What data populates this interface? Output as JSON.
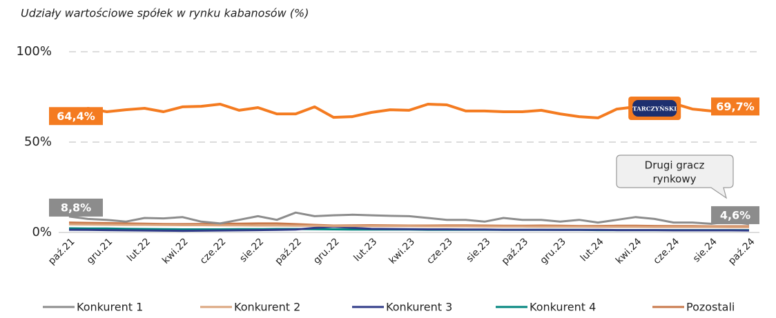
{
  "chart_data": {
    "type": "line",
    "title": "Udziały wartościowe spółek w rynku kabanosów (%)",
    "categories": [
      "paź.21",
      null,
      "gru.21",
      null,
      "lut.22",
      null,
      "kwi.22",
      null,
      "cze.22",
      null,
      "sie.22",
      null,
      "paź.22",
      null,
      "gru.22",
      null,
      "lut.23",
      null,
      "kwi.23",
      null,
      "cze.23",
      null,
      "sie.23",
      null,
      "paź.23",
      null,
      "gru.23",
      null,
      "lut.24",
      null,
      "kwi.24",
      null,
      "cze.24",
      null,
      "sie.24",
      null,
      "paź.24"
    ],
    "series": [
      {
        "name": "TARCZYŃSKI",
        "color": "#f47b20",
        "values": [
          64.4,
          68.7,
          66.8,
          67.9,
          68.7,
          66.8,
          69.5,
          69.8,
          71.0,
          67.6,
          69.1,
          65.6,
          65.6,
          69.5,
          63.7,
          64.1,
          66.4,
          67.9,
          67.6,
          71.0,
          70.6,
          67.2,
          67.2,
          66.8,
          66.8,
          67.6,
          65.6,
          64.1,
          63.4,
          68.3,
          69.5,
          69.5,
          71.4,
          68.3,
          67.2,
          68.0,
          69.7
        ],
        "value_labels": [
          "64,4%",
          null,
          null,
          null,
          null,
          null,
          null,
          null,
          null,
          null,
          null,
          null,
          null,
          null,
          null,
          null,
          null,
          null,
          null,
          null,
          null,
          null,
          null,
          null,
          null,
          null,
          null,
          null,
          null,
          null,
          null,
          null,
          null,
          null,
          null,
          null,
          "69,7%"
        ]
      },
      {
        "name": "Konkurent 1",
        "color": "#8c8c8c",
        "values": [
          8.8,
          7.5,
          7,
          6,
          8,
          7.8,
          8.5,
          6,
          5,
          7,
          9,
          7,
          11,
          9,
          9.5,
          9.8,
          9.5,
          9.2,
          9,
          8,
          7,
          7,
          6,
          8,
          7,
          7,
          6,
          7,
          5.5,
          7,
          8.5,
          7.5,
          5.5,
          5.5,
          4.8,
          6,
          4.6
        ],
        "value_labels": [
          "8,8%",
          null,
          null,
          null,
          null,
          null,
          null,
          null,
          null,
          null,
          null,
          null,
          null,
          null,
          null,
          null,
          null,
          null,
          null,
          null,
          null,
          null,
          null,
          null,
          null,
          null,
          null,
          null,
          null,
          null,
          null,
          null,
          null,
          null,
          null,
          null,
          "4,6%"
        ]
      },
      {
        "name": "Konkurent 2",
        "color": "#dba57e",
        "values": [
          4.5,
          4.4,
          4.3,
          4.2,
          4.2,
          4.1,
          4.0,
          4.0,
          3.9,
          3.9,
          3.8,
          3.8,
          3.7,
          3.7,
          3.6,
          3.6,
          3.5,
          3.5,
          3.5,
          3.4,
          3.4,
          3.4,
          3.3,
          3.3,
          3.3,
          3.2,
          3.2,
          3.2,
          3.1,
          3.1,
          3.1,
          3.0,
          3.0,
          3.0,
          3.0,
          2.9,
          2.9
        ]
      },
      {
        "name": "Konkurent 3",
        "color": "#2e3a87",
        "values": [
          1.5,
          1.4,
          1.3,
          1.2,
          1.1,
          1.0,
          0.9,
          1.0,
          1.1,
          1.2,
          1.3,
          1.4,
          1.6,
          2.5,
          3.2,
          2.6,
          2.0,
          1.9,
          1.8,
          1.7,
          1.7,
          1.6,
          1.6,
          1.5,
          1.5,
          1.5,
          1.4,
          1.4,
          1.4,
          1.3,
          1.3,
          1.3,
          1.2,
          1.2,
          1.2,
          1.2,
          1.1
        ]
      },
      {
        "name": "Konkurent 4",
        "color": "#00857d",
        "values": [
          2.3,
          2.2,
          2.2,
          2.0,
          1.9,
          1.8,
          1.7,
          1.7,
          1.7,
          1.8,
          1.8,
          1.9,
          1.9,
          1.8,
          1.7,
          1.6,
          1.6,
          1.6,
          1.6,
          1.5,
          1.5,
          1.5,
          1.5,
          1.4,
          1.4,
          1.4,
          1.4,
          1.4,
          1.3,
          1.3,
          1.3,
          1.3,
          1.3,
          1.3,
          1.3,
          1.3,
          1.3
        ]
      },
      {
        "name": "Pozostali",
        "color": "#c8784a",
        "values": [
          5.5,
          5.3,
          5.2,
          5.0,
          4.9,
          4.7,
          4.6,
          4.7,
          4.8,
          4.9,
          5.0,
          5.0,
          4.6,
          4.2,
          3.8,
          3.9,
          4.0,
          3.9,
          3.8,
          3.8,
          3.9,
          3.9,
          3.8,
          3.7,
          3.7,
          3.8,
          3.7,
          3.6,
          3.6,
          3.7,
          3.7,
          3.6,
          3.5,
          3.5,
          3.4,
          3.4,
          3.4
        ]
      }
    ],
    "annotation": [
      "Drugi gracz",
      "rynkowy"
    ],
    "ylim": [
      0,
      100
    ],
    "yticks": [
      {
        "value": 0,
        "label": "0%"
      },
      {
        "value": 50,
        "label": "50%"
      },
      {
        "value": 100,
        "label": "100%"
      }
    ],
    "grid": true
  }
}
